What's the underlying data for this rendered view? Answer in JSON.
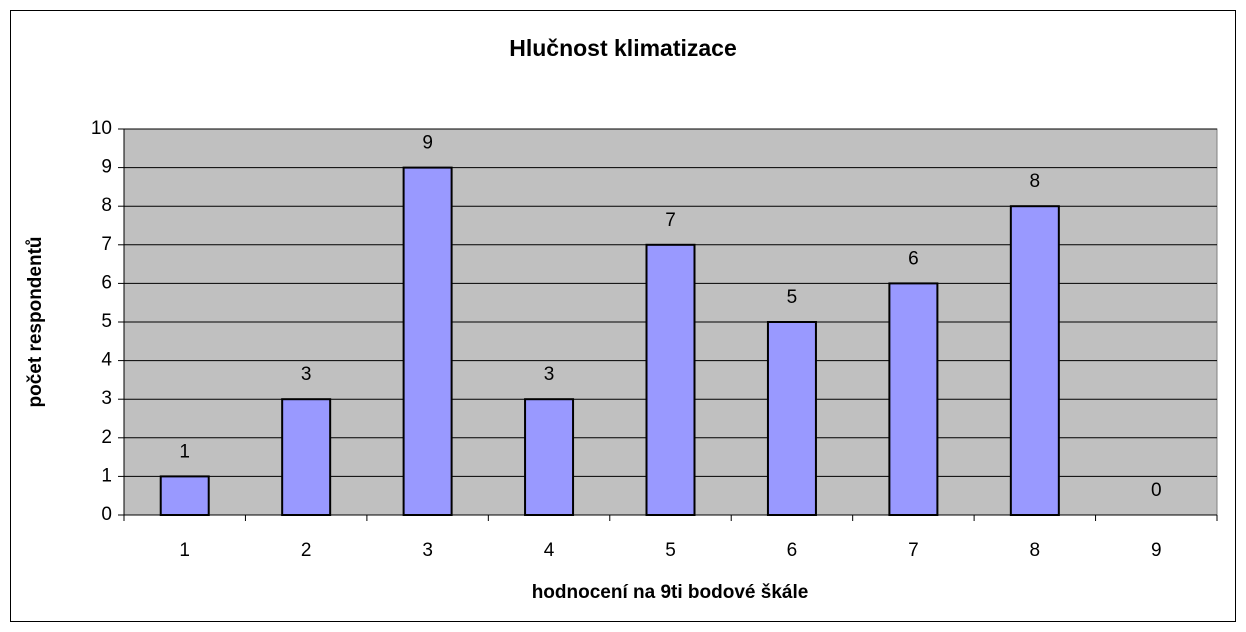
{
  "chart_data": {
    "type": "bar",
    "title": "Hlučnost klimatizace",
    "x_label": "hodnocení na 9ti bodové škále",
    "y_label": "počet respondentů",
    "categories": [
      "1",
      "2",
      "3",
      "4",
      "5",
      "6",
      "7",
      "8",
      "9"
    ],
    "values": [
      1,
      3,
      9,
      3,
      7,
      5,
      6,
      8,
      0
    ],
    "color": "#9999ff",
    "ylim": [
      0,
      10
    ],
    "yticks": [
      0,
      1,
      2,
      3,
      4,
      5,
      6,
      7,
      8,
      9,
      10
    ],
    "grid": true
  }
}
